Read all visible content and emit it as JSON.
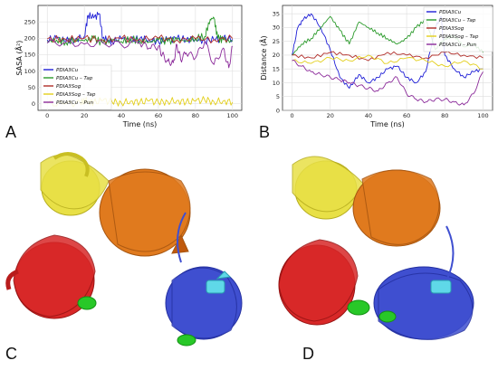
{
  "panels": {
    "a": "A",
    "b": "B",
    "c": "C",
    "d": "D"
  },
  "chart_data": [
    {
      "type": "line",
      "xlabel": "Time (ns)",
      "ylabel": "SASA (Å²)",
      "xlim": [
        -5,
        105
      ],
      "ylim": [
        -20,
        300
      ],
      "xticks": [
        0,
        20,
        40,
        60,
        80,
        100
      ],
      "yticks": [
        0,
        50,
        100,
        150,
        200,
        250
      ],
      "grid": true,
      "legend": "middle-left",
      "series": [
        {
          "name": "PDIA3Cu",
          "color": "#1f1fd6",
          "x": [
            0,
            5,
            10,
            15,
            20,
            22,
            25,
            28,
            30,
            33,
            35,
            40,
            45,
            50,
            55,
            60,
            65,
            70,
            75,
            80,
            85,
            90,
            95,
            100
          ],
          "y": [
            195,
            200,
            192,
            196,
            205,
            270,
            262,
            275,
            200,
            195,
            190,
            198,
            193,
            200,
            196,
            190,
            195,
            200,
            196,
            198,
            192,
            195,
            200,
            197
          ]
        },
        {
          "name": "PDIA3Cu – Tap",
          "color": "#2a9a2a",
          "x": [
            0,
            5,
            10,
            15,
            20,
            25,
            30,
            35,
            40,
            45,
            50,
            55,
            60,
            65,
            70,
            75,
            80,
            85,
            88,
            90,
            92,
            95,
            100
          ],
          "y": [
            190,
            195,
            188,
            196,
            192,
            200,
            185,
            195,
            190,
            198,
            192,
            188,
            195,
            190,
            196,
            192,
            200,
            205,
            258,
            262,
            200,
            195,
            190
          ]
        },
        {
          "name": "PDIA3Sog",
          "color": "#b02c28",
          "x": [
            0,
            10,
            20,
            30,
            40,
            50,
            60,
            70,
            80,
            90,
            100
          ],
          "y": [
            198,
            196,
            200,
            195,
            199,
            197,
            200,
            195,
            198,
            196,
            199
          ]
        },
        {
          "name": "PDIA3Sog – Tap",
          "color": "#e3cf1c",
          "x": [
            0,
            10,
            18,
            20,
            22,
            25,
            30,
            35,
            40,
            45,
            50,
            55,
            60,
            65,
            70,
            75,
            80,
            85,
            90,
            95,
            100
          ],
          "y": [
            0,
            0,
            2,
            12,
            8,
            4,
            10,
            6,
            3,
            8,
            5,
            9,
            4,
            7,
            10,
            5,
            8,
            12,
            6,
            9,
            5
          ]
        },
        {
          "name": "PDIA3Cu – Pun",
          "color": "#8b2a9a",
          "x": [
            0,
            10,
            20,
            30,
            40,
            50,
            55,
            60,
            62,
            65,
            68,
            70,
            72,
            75,
            80,
            85,
            90,
            95,
            98,
            100
          ],
          "y": [
            185,
            188,
            182,
            186,
            180,
            185,
            170,
            175,
            150,
            130,
            125,
            180,
            135,
            155,
            140,
            190,
            120,
            170,
            110,
            175
          ]
        }
      ]
    },
    {
      "type": "line",
      "xlabel": "Time (ns)",
      "ylabel": "Distance (Å)",
      "xlim": [
        -5,
        105
      ],
      "ylim": [
        0,
        38
      ],
      "xticks": [
        0,
        20,
        40,
        60,
        80,
        100
      ],
      "yticks": [
        0,
        5,
        10,
        15,
        20,
        25,
        30,
        35
      ],
      "grid": true,
      "legend": "top-right",
      "series": [
        {
          "name": "PDIA3Cu",
          "color": "#1f1fd6",
          "x": [
            0,
            3,
            6,
            10,
            15,
            20,
            25,
            30,
            35,
            40,
            45,
            50,
            55,
            60,
            65,
            70,
            75,
            78,
            80,
            85,
            90,
            95,
            100
          ],
          "y": [
            20,
            30,
            33,
            35,
            30,
            22,
            12,
            8,
            13,
            10,
            12,
            15,
            16,
            12,
            10,
            14,
            30,
            34,
            20,
            15,
            12,
            14,
            15
          ]
        },
        {
          "name": "PDIA3Cu – Tap",
          "color": "#2a9a2a",
          "x": [
            0,
            5,
            10,
            15,
            20,
            25,
            30,
            35,
            40,
            45,
            50,
            55,
            60,
            65,
            70,
            75,
            80,
            85,
            90,
            95,
            100
          ],
          "y": [
            20,
            24,
            26,
            30,
            34,
            29,
            24,
            32,
            30,
            28,
            26,
            24,
            26,
            30,
            33,
            22,
            26,
            27,
            23,
            24,
            21
          ]
        },
        {
          "name": "PDIA3Sog",
          "color": "#b02c28",
          "x": [
            0,
            10,
            20,
            30,
            40,
            50,
            60,
            70,
            80,
            90,
            100
          ],
          "y": [
            20,
            19,
            21,
            20,
            18,
            21,
            20,
            19,
            21,
            20,
            19
          ]
        },
        {
          "name": "PDIA3Sog – Tap",
          "color": "#e3cf1c",
          "x": [
            0,
            10,
            20,
            30,
            40,
            50,
            60,
            70,
            80,
            90,
            100
          ],
          "y": [
            18,
            17,
            19,
            18,
            20,
            17,
            19,
            18,
            16,
            18,
            15
          ]
        },
        {
          "name": "PDIA3Cu – Pun",
          "color": "#8b2a9a",
          "x": [
            0,
            5,
            10,
            15,
            20,
            25,
            30,
            35,
            40,
            45,
            50,
            55,
            60,
            65,
            70,
            75,
            80,
            85,
            90,
            95,
            100
          ],
          "y": [
            18,
            16,
            14,
            13,
            12,
            11,
            10,
            9,
            8,
            7,
            10,
            12,
            6,
            4,
            3,
            4,
            4,
            3,
            2,
            6,
            14
          ]
        }
      ]
    }
  ],
  "structures": {
    "domain_colors": [
      "#e8e046",
      "#e07a1e",
      "#d82828",
      "#3f4fd0",
      "#28c828",
      "#5fd8e8"
    ]
  }
}
